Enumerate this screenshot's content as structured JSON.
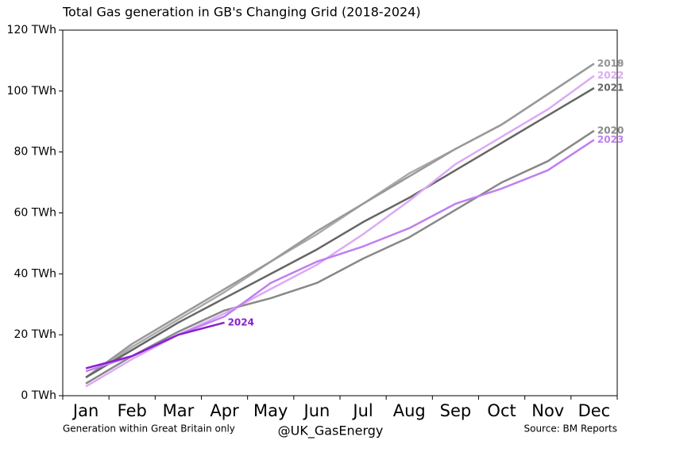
{
  "chart_data": {
    "type": "line",
    "title": "Total Gas generation in GB's Changing Grid (2018-2024)",
    "categories": [
      "Jan",
      "Feb",
      "Mar",
      "Apr",
      "May",
      "Jun",
      "Jul",
      "Aug",
      "Sep",
      "Oct",
      "Nov",
      "Dec"
    ],
    "series": [
      {
        "name": "2018",
        "color": "#aaaaaa",
        "values": [
          6,
          16,
          25,
          34,
          44,
          53,
          63,
          73,
          81,
          89,
          99,
          109
        ]
      },
      {
        "name": "2019",
        "color": "#999999",
        "values": [
          6,
          17,
          26,
          35,
          44,
          54,
          63,
          72,
          81,
          89,
          99,
          109
        ]
      },
      {
        "name": "2020",
        "color": "#888888",
        "values": [
          4,
          13,
          21,
          28,
          32,
          37,
          45,
          52,
          61,
          70,
          77,
          87
        ]
      },
      {
        "name": "2021",
        "color": "#666666",
        "values": [
          6,
          15,
          24,
          32,
          40,
          48,
          57,
          65,
          74,
          83,
          92,
          101
        ]
      },
      {
        "name": "2022",
        "color": "#dcaaf5",
        "values": [
          3,
          12,
          20,
          27,
          35,
          43,
          53,
          64,
          76,
          85,
          94,
          105
        ]
      },
      {
        "name": "2023",
        "color": "#c07ff0",
        "values": [
          8,
          13,
          20,
          26,
          37,
          44,
          49,
          55,
          63,
          68,
          74,
          84
        ]
      },
      {
        "name": "2024",
        "color": "#8a1fd0",
        "values": [
          9,
          13,
          20,
          24,
          null,
          null,
          null,
          null,
          null,
          null,
          null,
          null
        ]
      }
    ],
    "ylim": [
      0,
      120
    ],
    "yticks": [
      {
        "value": 0,
        "label": "0 TWh"
      },
      {
        "value": 20,
        "label": "20 TWh"
      },
      {
        "value": 40,
        "label": "40 TWh"
      },
      {
        "value": 60,
        "label": "60 TWh"
      },
      {
        "value": 80,
        "label": "80 TWh"
      },
      {
        "value": 100,
        "label": "100 TWh"
      },
      {
        "value": 120,
        "label": "120 TWh"
      }
    ],
    "footer_left": "Generation within Great Britain only",
    "footer_center": "@UK_GasEnergy",
    "footer_right": "Source: BM Reports"
  }
}
